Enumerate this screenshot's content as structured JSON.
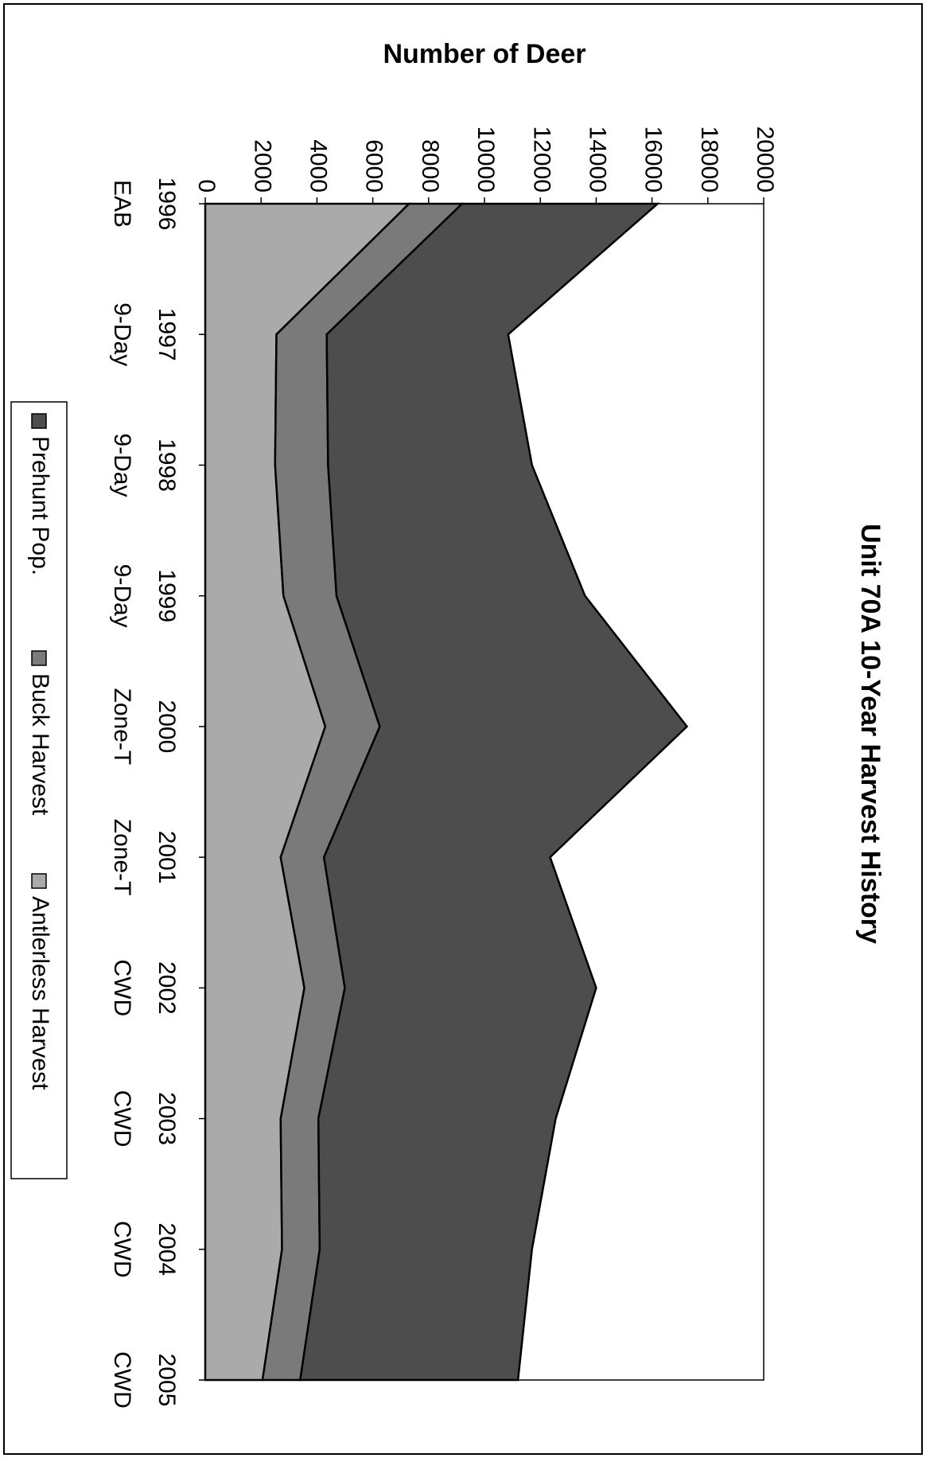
{
  "chart_data": {
    "type": "area",
    "stacked": true,
    "title": "Unit 70A 10-Year Harvest History",
    "ylabel": "Number of Deer",
    "xlabel": "",
    "ylim": [
      0,
      20000
    ],
    "yticks": [
      0,
      2000,
      4000,
      6000,
      8000,
      10000,
      12000,
      14000,
      16000,
      18000,
      20000
    ],
    "categories": [
      {
        "year": "1996",
        "season": "EAB"
      },
      {
        "year": "1997",
        "season": "9-Day"
      },
      {
        "year": "1998",
        "season": "9-Day"
      },
      {
        "year": "1999",
        "season": "9-Day"
      },
      {
        "year": "2000",
        "season": "Zone-T"
      },
      {
        "year": "2001",
        "season": "Zone-T"
      },
      {
        "year": "2002",
        "season": "CWD"
      },
      {
        "year": "2003",
        "season": "CWD"
      },
      {
        "year": "2004",
        "season": "CWD"
      },
      {
        "year": "2005",
        "season": "CWD"
      }
    ],
    "series": [
      {
        "name": "Antlerless Harvest",
        "color": "#aaaaaa",
        "values": [
          7300,
          2550,
          2500,
          2800,
          4300,
          2700,
          3550,
          2700,
          2750,
          2050
        ]
      },
      {
        "name": "Buck Harvest",
        "color": "#7a7a7a",
        "values": [
          1900,
          1800,
          1900,
          1900,
          1950,
          1550,
          1450,
          1350,
          1350,
          1350
        ]
      },
      {
        "name": "Prehunt Pop.",
        "color": "#4d4d4d",
        "values": [
          7000,
          6500,
          7300,
          8900,
          11000,
          8100,
          9000,
          8500,
          7600,
          7800
        ]
      }
    ],
    "legend": {
      "placement": "bottom",
      "entries": [
        "Prehunt Pop.",
        "Buck Harvest",
        "Antlerless Harvest"
      ]
    },
    "grid": false
  }
}
